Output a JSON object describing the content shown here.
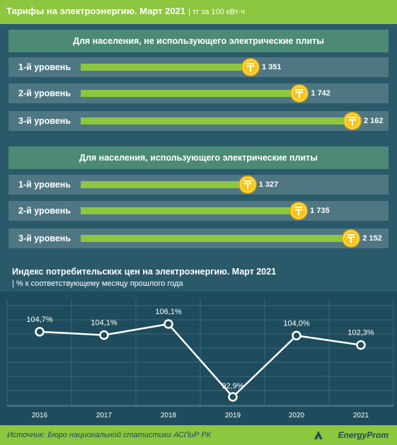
{
  "header": {
    "title": "Тарифы на электроэнергию. Март 2021",
    "unit": "| тг за 100 кВт·ч"
  },
  "colors": {
    "green": "#8dc63f",
    "panel": "#2a5a6a",
    "row": "#4f7783",
    "coin": "#f5c518"
  },
  "chart_data": [
    {
      "type": "bar",
      "title": "Для населения, не использующего электрические плиты",
      "categories": [
        "1-й уровень",
        "2-й уровень",
        "3-й уровень"
      ],
      "values": [
        1351,
        1742,
        2162
      ],
      "value_labels": [
        "1 351",
        "1 742",
        "2 162"
      ],
      "icon": "tenge-coin-icon"
    },
    {
      "type": "bar",
      "title": "Для населения, использующего электрические плиты",
      "categories": [
        "1-й уровень",
        "2-й уровень",
        "3-й уровень"
      ],
      "values": [
        1327,
        1735,
        2152
      ],
      "value_labels": [
        "1 327",
        "1 735",
        "2 152"
      ],
      "icon": "tenge-coin-icon"
    },
    {
      "type": "line",
      "title": "Индекс потребительских цен на электроэнергию. Март 2021",
      "subtitle": "| % к соответствующему месяцу прошлого года",
      "x": [
        "2016",
        "2017",
        "2018",
        "2019",
        "2020",
        "2021"
      ],
      "y": [
        104.7,
        104.1,
        106.1,
        92.9,
        104.0,
        102.3
      ],
      "value_labels": [
        "104,7%",
        "104,1%",
        "106,1%",
        "92,9%",
        "104,0%",
        "102,3%"
      ],
      "grid": true
    }
  ],
  "footer": {
    "source": "Источник: Бюро национальной статистики АСПиР РК",
    "brand": "EnergyProm"
  }
}
